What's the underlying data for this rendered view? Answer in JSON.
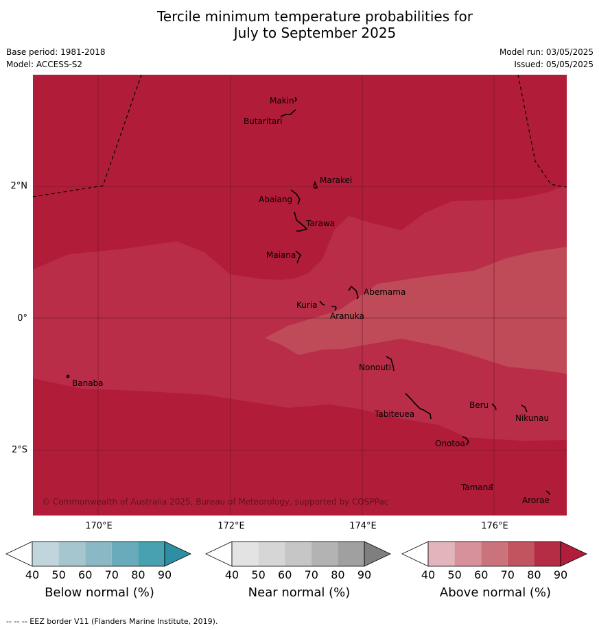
{
  "header": {
    "title_line1": "Tercile minimum temperature probabilities for",
    "title_line2": "July to September 2025",
    "base_period": "Base period: 1981-2018",
    "model": "Model: ACCESS-S2",
    "model_run": "Model run: 03/05/2025",
    "issued": "Issued: 05/05/2025"
  },
  "map": {
    "lon_labels": [
      "170°E",
      "172°E",
      "174°E",
      "176°E"
    ],
    "lat_labels": [
      "2°N",
      "0°",
      "2°S"
    ],
    "copyright": "© Commonwealth of Australia 2025, Bureau of Meteorology, supported by COSPPac",
    "islands": [
      "Makin",
      "Butaritari",
      "Marakei",
      "Abaiang",
      "Tarawa",
      "Maiana",
      "Abemama",
      "Kuria",
      "Aranuka",
      "Banaba",
      "Nonouti",
      "Beru",
      "Nikunau",
      "Tabiteuea",
      "Onotoa",
      "Tamana",
      "Arorae"
    ],
    "colors": {
      "above_90": "#b11d38",
      "above_80": "#b92d48",
      "above_70": "#bf4b58"
    }
  },
  "legends": [
    {
      "title": "Below normal (%)",
      "ticks": [
        "40",
        "50",
        "60",
        "70",
        "80",
        "90"
      ],
      "colors": [
        "#ffffff",
        "#c0d5dc",
        "#a5c6ce",
        "#8ab8c4",
        "#6aabbb",
        "#47a1b1",
        "#2e8ea4"
      ]
    },
    {
      "title": "Near normal (%)",
      "ticks": [
        "40",
        "50",
        "60",
        "70",
        "80",
        "90"
      ],
      "colors": [
        "#ffffff",
        "#e3e3e3",
        "#d6d6d6",
        "#c6c6c6",
        "#b3b3b3",
        "#a0a0a0",
        "#7f7f7f"
      ]
    },
    {
      "title": "Above normal (%)",
      "ticks": [
        "40",
        "50",
        "60",
        "70",
        "80",
        "90"
      ],
      "colors": [
        "#ffffff",
        "#e2b5bc",
        "#d6919a",
        "#cb737c",
        "#c2545f",
        "#b52c45",
        "#b01e3c"
      ]
    }
  ],
  "footnote": "-- -- -- EEZ border V11 (Flanders Marine Institute, 2019)."
}
